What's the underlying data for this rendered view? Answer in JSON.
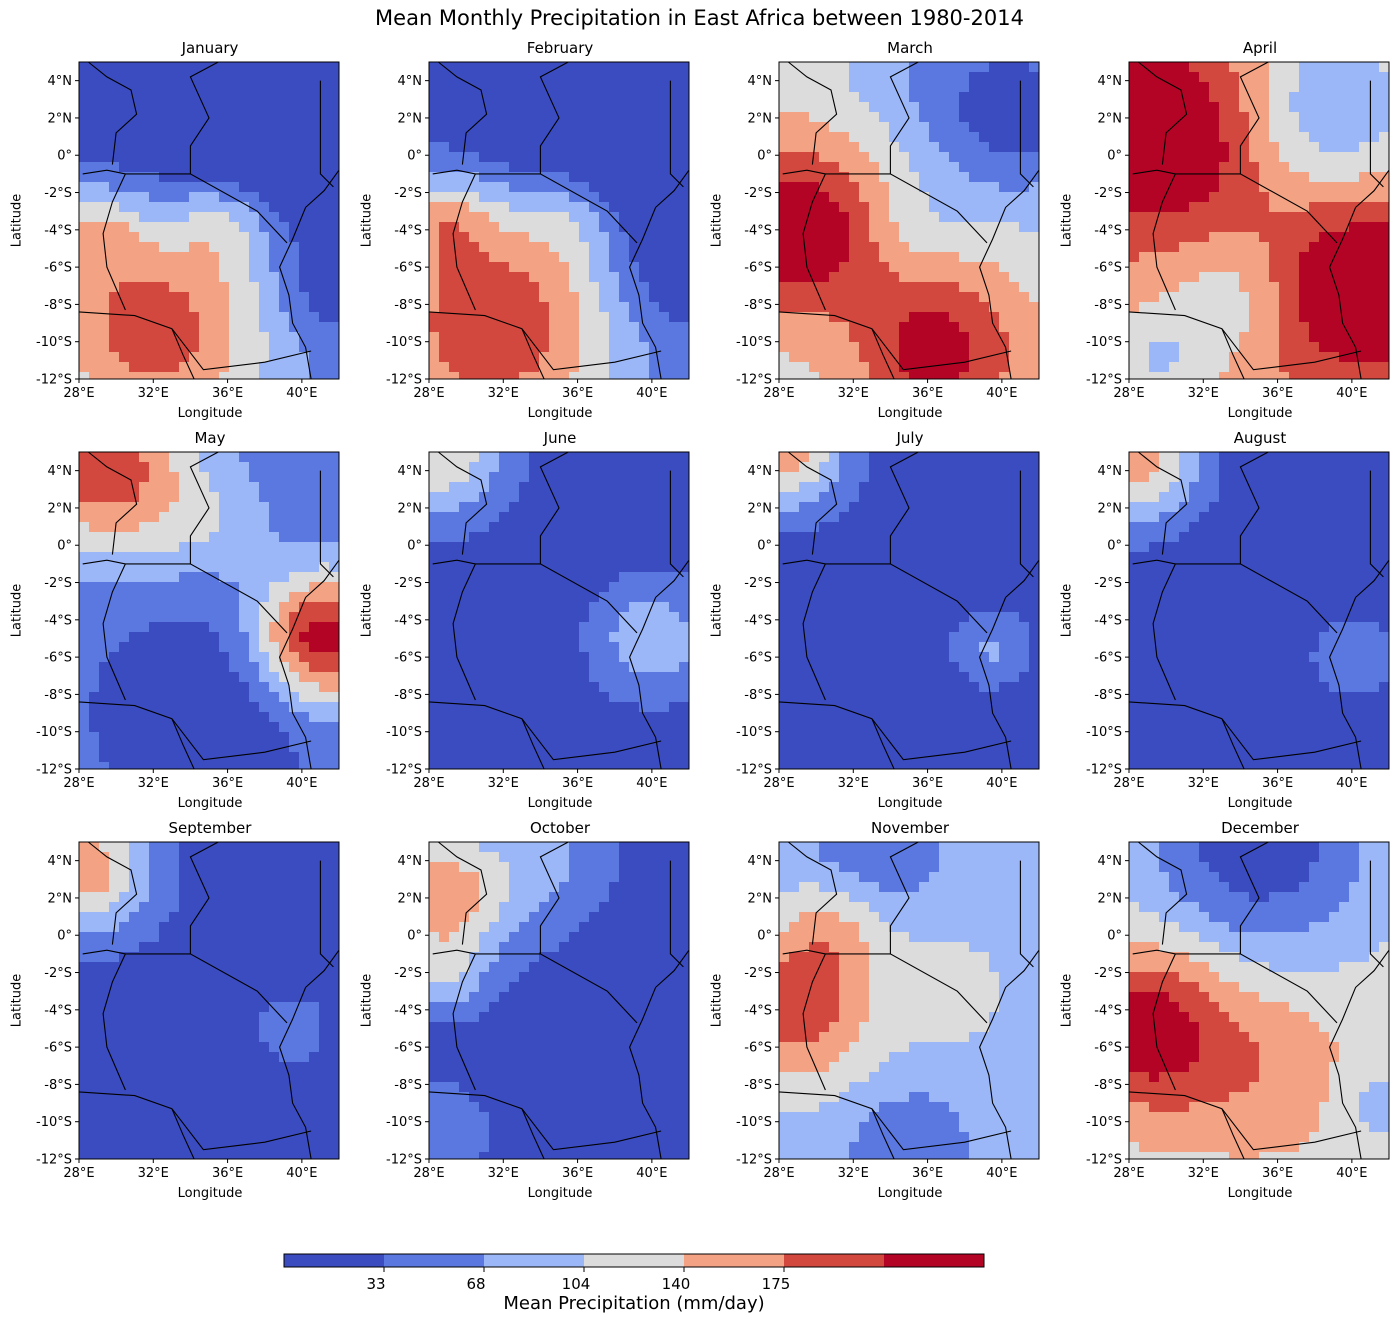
{
  "figure_title": "Mean Monthly Precipitation in East Africa between 1980-2014",
  "x_axis_label": "Longitude",
  "y_axis_label": "Latitude",
  "x_ticks": [
    "28°E",
    "32°E",
    "36°E",
    "40°E"
  ],
  "y_ticks": [
    "4°N",
    "2°N",
    "0°",
    "-2°S",
    "-4°S",
    "-6°S",
    "-8°S",
    "-10°S",
    "-12°S"
  ],
  "colorbar": {
    "label": "Mean Precipitation (mm/day)",
    "tick_labels": [
      "33",
      "68",
      "104",
      "140",
      "175"
    ],
    "level_colors": [
      "#3b4cc0",
      "#5a78e0",
      "#9bb7f8",
      "#dcdcdc",
      "#f3a283",
      "#d2473e",
      "#b40426"
    ]
  },
  "map_extent": {
    "lon": [
      28,
      42
    ],
    "lat": [
      -12,
      5
    ]
  },
  "panels": [
    {
      "month": "January",
      "base": 1,
      "blobs": [
        {
          "lon": 35.5,
          "lat": 5.0,
          "r": 9.0,
          "v": -3.0
        },
        {
          "lon": 32.0,
          "lat": -9.0,
          "r": 6.5,
          "v": 4.3
        },
        {
          "lon": 29.0,
          "lat": -4.0,
          "r": 2.2,
          "v": 1.8
        },
        {
          "lon": 36.0,
          "lat": -3.5,
          "r": 2.8,
          "v": 1.6
        },
        {
          "lon": 41.5,
          "lat": -7.0,
          "r": 3.0,
          "v": -1.2
        },
        {
          "lon": 41.5,
          "lat": 2.0,
          "r": 5.0,
          "v": -2.0
        }
      ]
    },
    {
      "month": "February",
      "base": 1,
      "blobs": [
        {
          "lon": 36.0,
          "lat": 5.0,
          "r": 8.5,
          "v": -3.0
        },
        {
          "lon": 31.5,
          "lat": -9.0,
          "r": 6.5,
          "v": 4.6
        },
        {
          "lon": 29.0,
          "lat": -3.5,
          "r": 2.5,
          "v": 2.0
        },
        {
          "lon": 35.5,
          "lat": -3.0,
          "r": 3.0,
          "v": 1.5
        },
        {
          "lon": 41.5,
          "lat": -6.5,
          "r": 3.5,
          "v": -1.3
        },
        {
          "lon": 41.5,
          "lat": 1.5,
          "r": 5.5,
          "v": -2.0
        }
      ]
    },
    {
      "month": "March",
      "base": 3,
      "blobs": [
        {
          "lon": 29.0,
          "lat": -4.0,
          "r": 4.5,
          "v": 3.5
        },
        {
          "lon": 36.5,
          "lat": -10.5,
          "r": 4.5,
          "v": 3.0
        },
        {
          "lon": 40.5,
          "lat": 2.5,
          "r": 5.0,
          "v": -3.2
        },
        {
          "lon": 34.0,
          "lat": 4.5,
          "r": 3.0,
          "v": -0.8
        },
        {
          "lon": 35.5,
          "lat": -4.0,
          "r": 2.5,
          "v": -0.6
        }
      ]
    },
    {
      "month": "April",
      "base": 4,
      "blobs": [
        {
          "lon": 30.0,
          "lat": 1.0,
          "r": 5.5,
          "v": 2.8
        },
        {
          "lon": 40.5,
          "lat": -7.0,
          "r": 5.0,
          "v": 3.0
        },
        {
          "lon": 39.0,
          "lat": 2.5,
          "r": 5.0,
          "v": -2.5
        },
        {
          "lon": 33.5,
          "lat": -7.5,
          "r": 3.5,
          "v": -1.3
        },
        {
          "lon": 29.5,
          "lat": -11.0,
          "r": 3.0,
          "v": -1.5
        }
      ]
    },
    {
      "month": "May",
      "base": 1,
      "blobs": [
        {
          "lon": 29.5,
          "lat": 4.0,
          "r": 4.5,
          "v": 4.2
        },
        {
          "lon": 41.0,
          "lat": -5.0,
          "r": 3.5,
          "v": 5.3
        },
        {
          "lon": 35.0,
          "lat": 1.0,
          "r": 3.0,
          "v": 1.2
        },
        {
          "lon": 35.0,
          "lat": -9.0,
          "r": 6.0,
          "v": -1.5
        }
      ]
    },
    {
      "month": "June",
      "base": 0,
      "blobs": [
        {
          "lon": 28.5,
          "lat": 5.0,
          "r": 3.5,
          "v": 3.5
        },
        {
          "lon": 40.0,
          "lat": -5.0,
          "r": 3.0,
          "v": 2.4
        }
      ]
    },
    {
      "month": "July",
      "base": 0,
      "blobs": [
        {
          "lon": 28.5,
          "lat": 5.0,
          "r": 3.0,
          "v": 4.0
        },
        {
          "lon": 39.5,
          "lat": -5.5,
          "r": 2.0,
          "v": 1.6
        }
      ]
    },
    {
      "month": "August",
      "base": 0,
      "blobs": [
        {
          "lon": 28.5,
          "lat": 4.5,
          "r": 3.2,
          "v": 4.0
        },
        {
          "lon": 40.0,
          "lat": -6.0,
          "r": 2.2,
          "v": 1.2
        }
      ]
    },
    {
      "month": "September",
      "base": 0,
      "blobs": [
        {
          "lon": 28.5,
          "lat": 3.5,
          "r": 3.5,
          "v": 4.0
        },
        {
          "lon": 39.5,
          "lat": -5.0,
          "r": 2.0,
          "v": 1.0
        }
      ]
    },
    {
      "month": "October",
      "base": 0,
      "blobs": [
        {
          "lon": 28.5,
          "lat": 2.0,
          "r": 4.0,
          "v": 4.3
        },
        {
          "lon": 29.0,
          "lat": -2.5,
          "r": 1.8,
          "v": 1.5
        },
        {
          "lon": 34.5,
          "lat": 4.0,
          "r": 3.5,
          "v": 1.5
        },
        {
          "lon": 28.5,
          "lat": -10.5,
          "r": 2.5,
          "v": 1.5
        }
      ]
    },
    {
      "month": "November",
      "base": 2,
      "blobs": [
        {
          "lon": 29.0,
          "lat": -4.0,
          "r": 4.0,
          "v": 3.2
        },
        {
          "lon": 31.0,
          "lat": 0.5,
          "r": 3.0,
          "v": 1.5
        },
        {
          "lon": 37.0,
          "lat": -3.0,
          "r": 3.0,
          "v": 1.2
        },
        {
          "lon": 33.0,
          "lat": 4.5,
          "r": 3.5,
          "v": -1.5
        },
        {
          "lon": 35.0,
          "lat": -11.5,
          "r": 3.0,
          "v": -1.5
        }
      ]
    },
    {
      "month": "December",
      "base": 3,
      "blobs": [
        {
          "lon": 29.0,
          "lat": -5.0,
          "r": 4.5,
          "v": 3.2
        },
        {
          "lon": 35.5,
          "lat": -7.0,
          "r": 5.0,
          "v": 1.2
        },
        {
          "lon": 35.0,
          "lat": 5.0,
          "r": 6.5,
          "v": -3.2
        },
        {
          "lon": 41.5,
          "lat": -9.0,
          "r": 2.5,
          "v": -1.0
        }
      ]
    }
  ]
}
